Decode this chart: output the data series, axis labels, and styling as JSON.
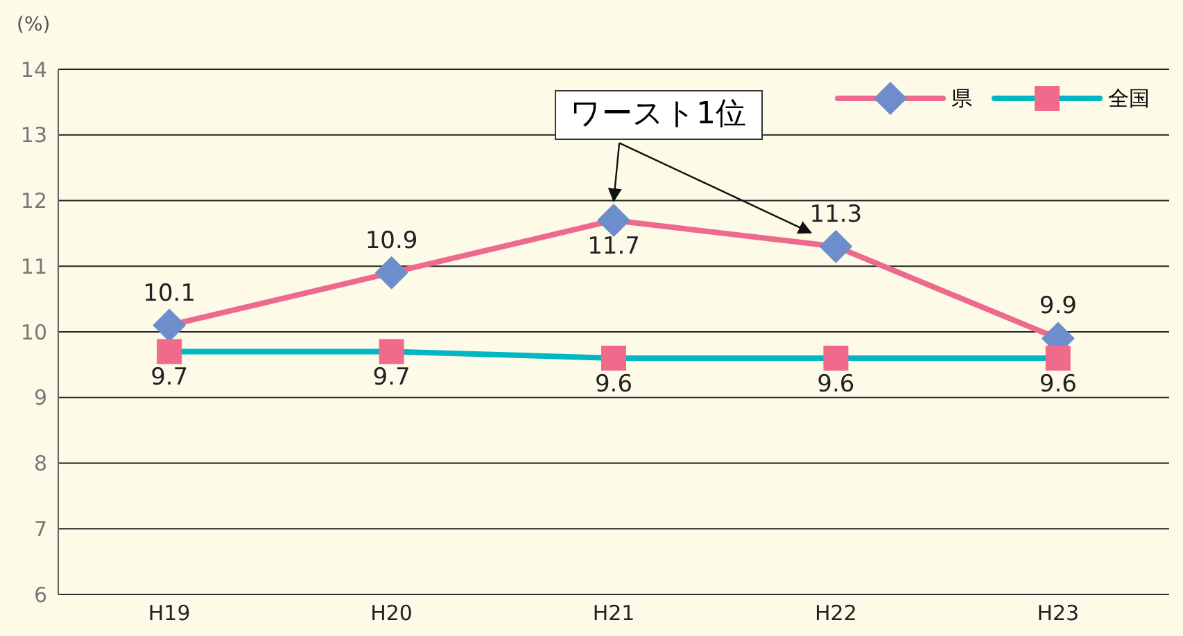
{
  "chart_data": {
    "type": "line",
    "ylabel": "(%)",
    "categories": [
      "H19",
      "H20",
      "H21",
      "H22",
      "H23"
    ],
    "series": [
      {
        "name": "県",
        "color": "#ee6a8c",
        "colors": [
          "#6d8ecb",
          "#6d8ecb",
          "#6d8ecb",
          "#6d8ecb",
          "#6d8ecb"
        ],
        "marker": "diamond",
        "values": [
          10.1,
          10.9,
          11.7,
          11.3,
          9.9
        ]
      },
      {
        "name": "全国",
        "color": "#00b7c3",
        "colors": [
          "#ef6a8b",
          "#ef6a8b",
          "#ef6a8b",
          "#ef6a8b",
          "#ef6a8b"
        ],
        "marker": "square",
        "values": [
          9.7,
          9.7,
          9.6,
          9.6,
          9.6
        ]
      }
    ],
    "ylim": [
      6,
      14
    ],
    "yticks": [
      6,
      7,
      8,
      9,
      10,
      11,
      12,
      13,
      14
    ],
    "grid": "y",
    "legend": "top right",
    "data_labels": true,
    "annotations": [
      {
        "text": "ワースト1位",
        "x": "H21",
        "y": 11.7
      }
    ]
  }
}
